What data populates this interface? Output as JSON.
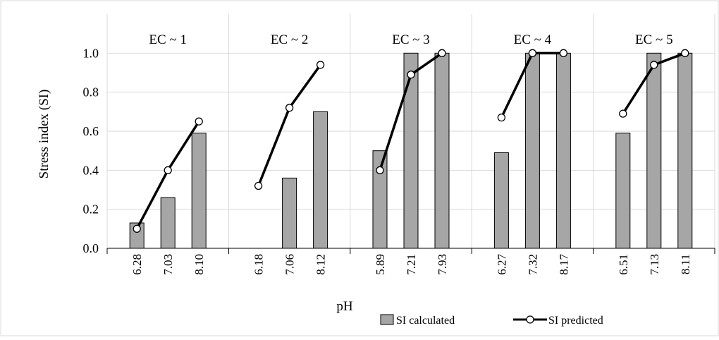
{
  "chart_data": {
    "type": "bar",
    "xlabel": "pH",
    "ylabel": "Stress index (SI)",
    "ylim": [
      0,
      1.2
    ],
    "yticks": [
      "0.0",
      "0.2",
      "0.4",
      "0.6",
      "0.8",
      "1.0"
    ],
    "grid": true,
    "legend_position": "bottom-right",
    "colors": {
      "bar": "#a6a6a6",
      "line": "#000000",
      "grid": "#d9d9d9"
    },
    "groups": [
      {
        "label": "EC ~ 1",
        "categories": [
          "6.28",
          "7.03",
          "8.10"
        ],
        "calculated": [
          0.13,
          0.26,
          0.59
        ],
        "predicted": [
          0.1,
          0.4,
          0.65
        ]
      },
      {
        "label": "EC ~ 2",
        "categories": [
          "6.18",
          "7.06",
          "8.12"
        ],
        "calculated": [
          0.0,
          0.36,
          0.7
        ],
        "predicted": [
          0.32,
          0.72,
          0.94
        ]
      },
      {
        "label": "EC ~ 3",
        "categories": [
          "5.89",
          "7.21",
          "7.93"
        ],
        "calculated": [
          0.5,
          1.0,
          1.0
        ],
        "predicted": [
          0.4,
          0.89,
          1.0
        ]
      },
      {
        "label": "EC ~ 4",
        "categories": [
          "6.27",
          "7.32",
          "8.17"
        ],
        "calculated": [
          0.49,
          1.0,
          1.0
        ],
        "predicted": [
          0.67,
          1.0,
          1.0
        ]
      },
      {
        "label": "EC ~ 5",
        "categories": [
          "6.51",
          "7.13",
          "8.11"
        ],
        "calculated": [
          0.59,
          1.0,
          1.0
        ],
        "predicted": [
          0.69,
          0.94,
          1.0
        ]
      }
    ],
    "series": [
      {
        "name": "SI calculated",
        "kind": "bar"
      },
      {
        "name": "SI predicted",
        "kind": "line-marker"
      }
    ]
  }
}
